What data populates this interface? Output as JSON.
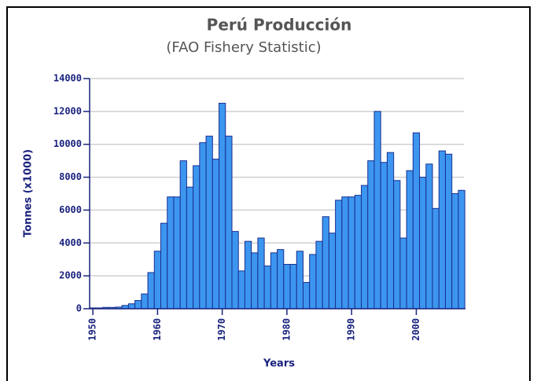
{
  "chart_data": {
    "type": "bar",
    "title": "Perú Producción",
    "subtitle": "(FAO Fishery Statistic)",
    "xlabel": "Years",
    "ylabel": "Tonnes (x1000)",
    "x": [
      1950,
      1951,
      1952,
      1953,
      1954,
      1955,
      1956,
      1957,
      1958,
      1959,
      1960,
      1961,
      1962,
      1963,
      1964,
      1965,
      1966,
      1967,
      1968,
      1969,
      1970,
      1971,
      1972,
      1973,
      1974,
      1975,
      1976,
      1977,
      1978,
      1979,
      1980,
      1981,
      1982,
      1983,
      1984,
      1985,
      1986,
      1987,
      1988,
      1989,
      1990,
      1991,
      1992,
      1993,
      1994,
      1995,
      1996,
      1997,
      1998,
      1999,
      2000,
      2001,
      2002,
      2003,
      2004,
      2005,
      2006,
      2007
    ],
    "values": [
      50,
      50,
      80,
      80,
      100,
      200,
      300,
      500,
      900,
      2200,
      3500,
      5200,
      6800,
      6800,
      9000,
      7400,
      8700,
      10100,
      10500,
      9100,
      12500,
      10500,
      4700,
      2300,
      4100,
      3400,
      4300,
      2600,
      3400,
      3600,
      2700,
      2700,
      3500,
      1600,
      3300,
      4100,
      5600,
      4600,
      6600,
      6800,
      6800,
      6900,
      7500,
      9000,
      12000,
      8900,
      9500,
      7800,
      4300,
      8400,
      10700,
      8000,
      8800,
      6100,
      9600,
      9400,
      7000,
      7200
    ],
    "color": "#3c96f0",
    "edge_color": "#1a2f8f",
    "xlim": [
      1949.5,
      2007.6
    ],
    "xticks": [
      1950,
      1960,
      1970,
      1980,
      1990,
      2000
    ],
    "ylim": [
      0,
      14000
    ],
    "yticks": [
      0,
      2000,
      4000,
      6000,
      8000,
      10000,
      12000,
      14000
    ],
    "grid": true
  }
}
